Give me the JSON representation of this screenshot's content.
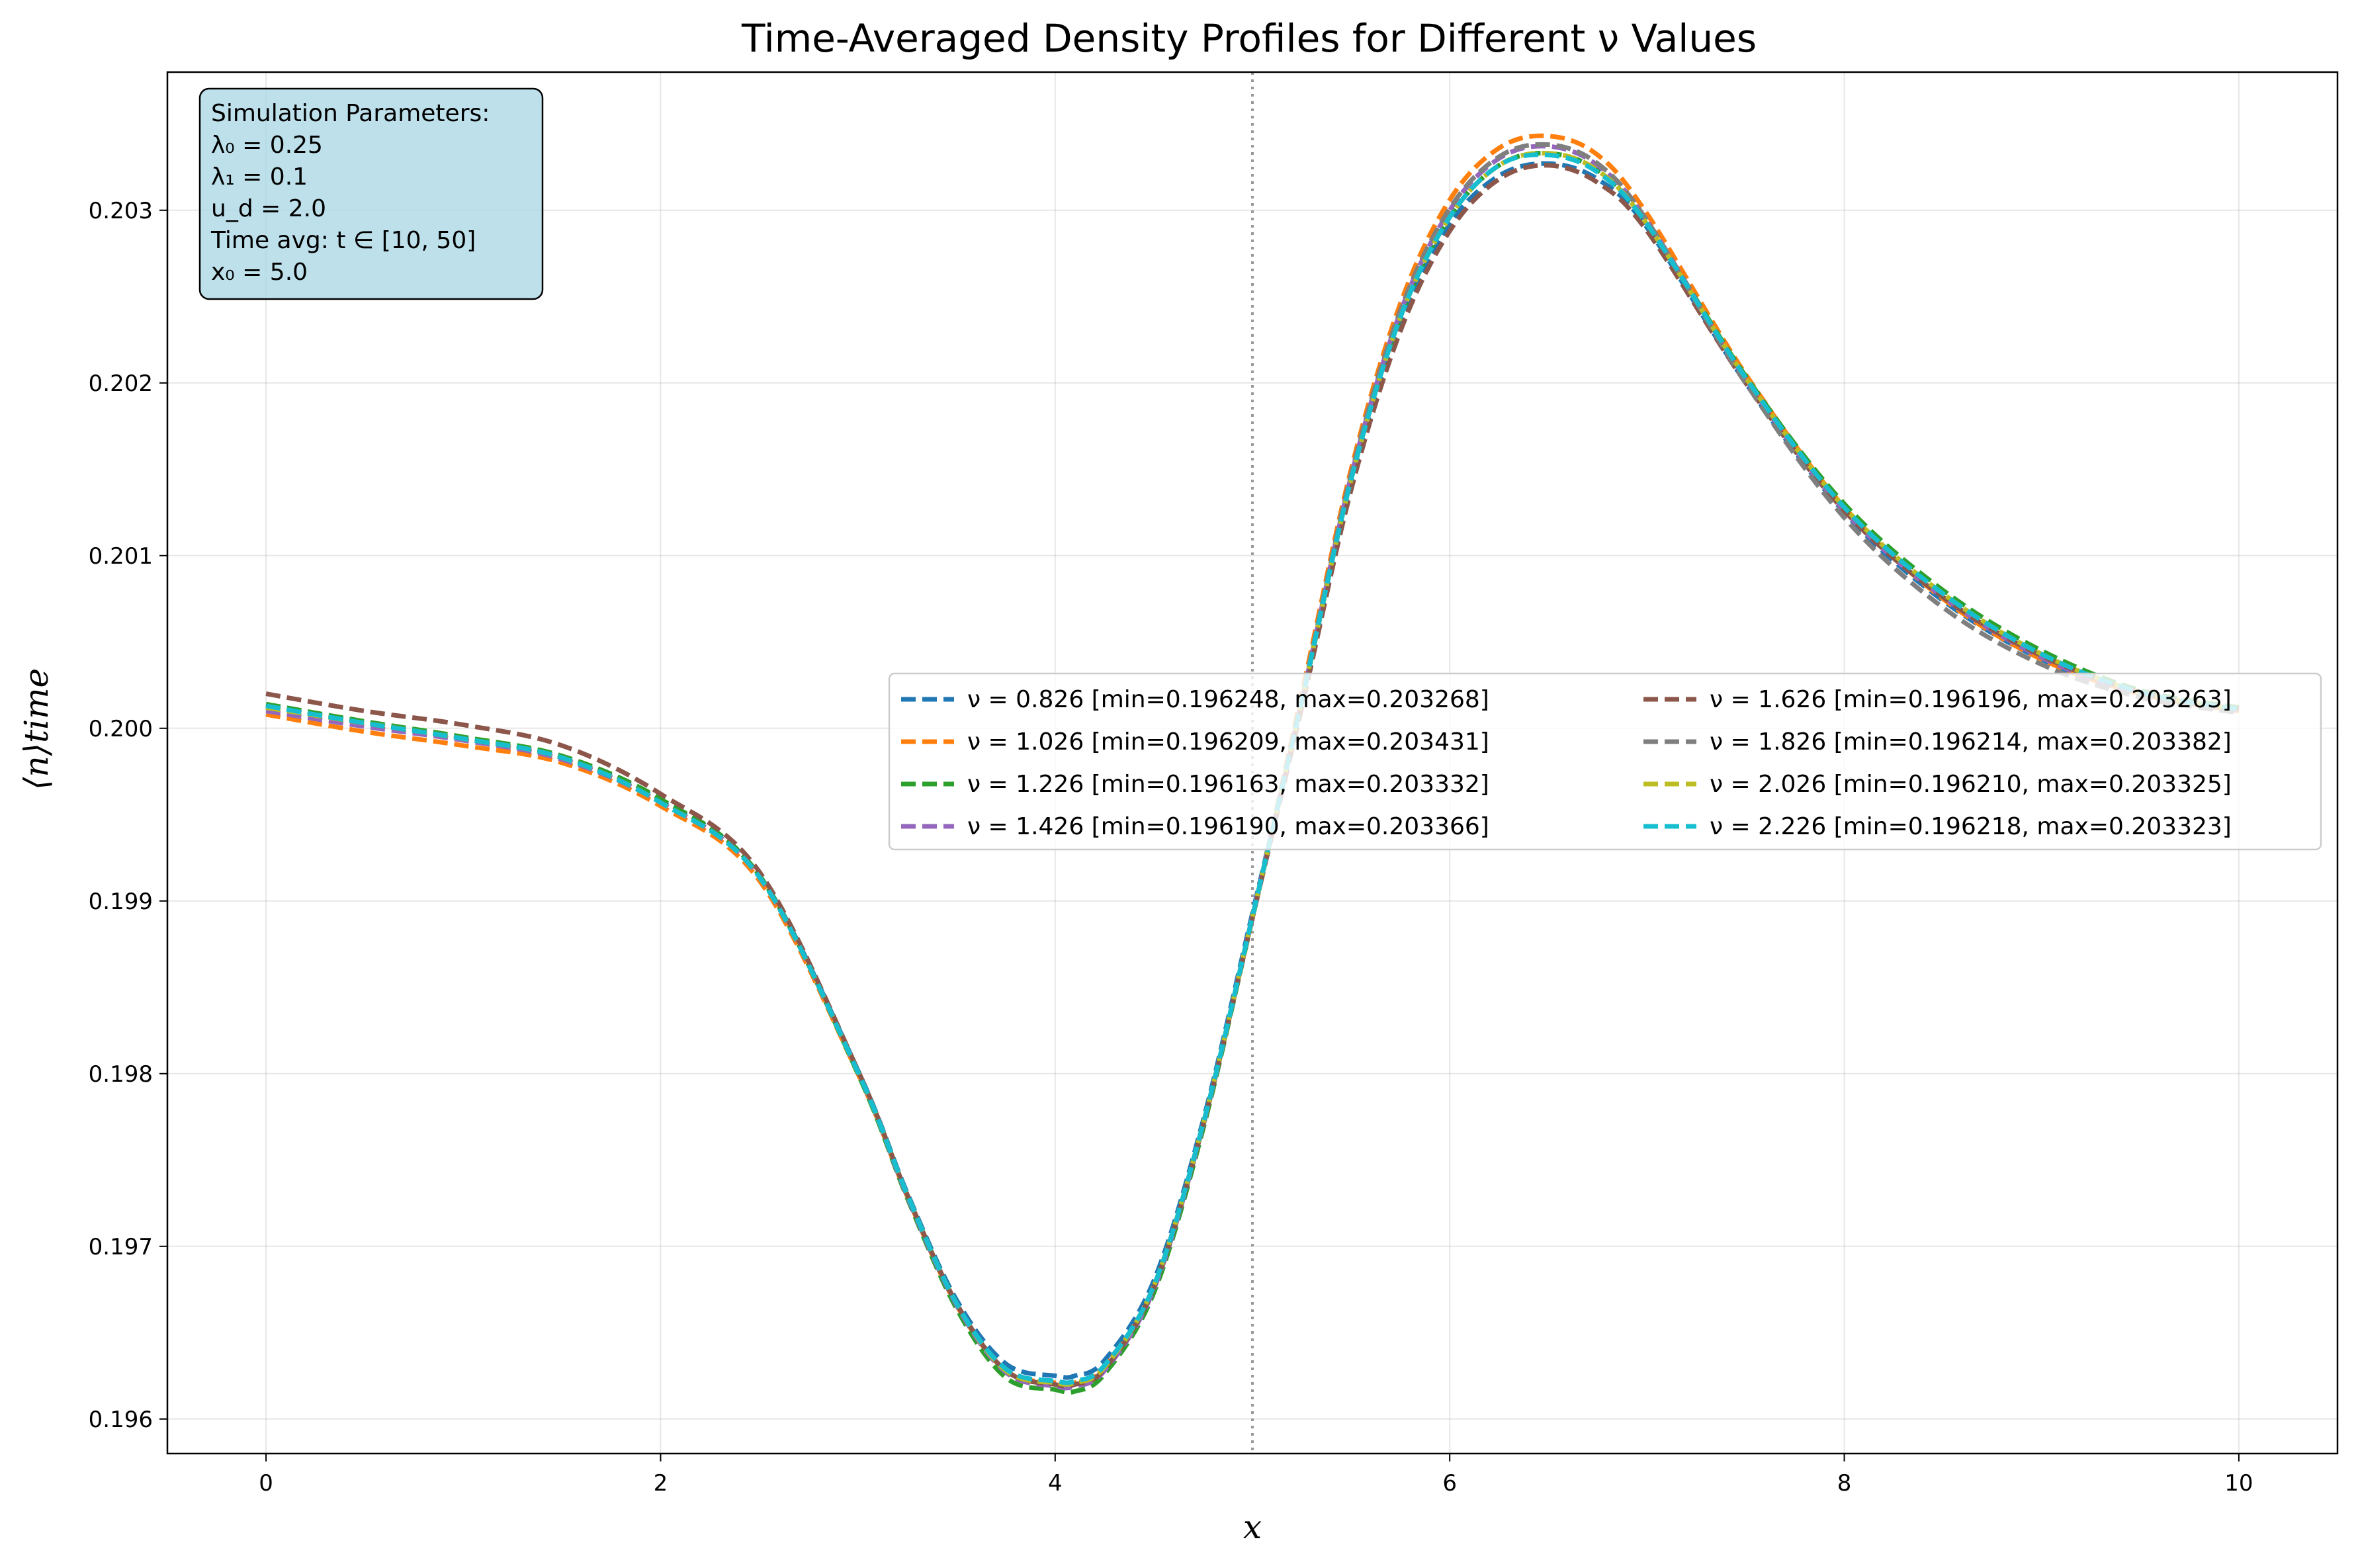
{
  "chart_data": {
    "type": "line",
    "title": "Time-Averaged Density Profiles for Different ν Values",
    "xlabel": "x",
    "ylabel": "⟨n⟩time",
    "xlim": [
      -0.5,
      10.5
    ],
    "ylim": [
      0.1958,
      0.2038
    ],
    "xticks": [
      0,
      2,
      4,
      6,
      8,
      10
    ],
    "xtick_labels": [
      "0",
      "2",
      "4",
      "6",
      "8",
      "10"
    ],
    "yticks": [
      0.196,
      0.197,
      0.198,
      0.199,
      0.2,
      0.201,
      0.202,
      0.203
    ],
    "ytick_labels": [
      "0.196",
      "0.197",
      "0.198",
      "0.199",
      "0.200",
      "0.201",
      "0.202",
      "0.203"
    ],
    "grid": true,
    "legend_position": "center-right",
    "vline": {
      "x": 5.0,
      "style": "dotted",
      "color": "#999999"
    },
    "x": [
      0,
      0.5,
      1,
      1.5,
      2,
      2.5,
      3,
      3.25,
      3.5,
      3.75,
      4,
      4.1,
      4.25,
      4.5,
      4.75,
      5,
      5.25,
      5.5,
      5.75,
      6,
      6.25,
      6.5,
      6.75,
      7,
      7.5,
      8,
      8.5,
      9,
      9.5,
      10
    ],
    "series": [
      {
        "name": "ν = 0.826 [min=0.196248, max=0.203268]",
        "color": "#1f77b4",
        "values": [
          0.20013,
          0.20003,
          0.19994,
          0.19983,
          0.19958,
          0.19915,
          0.19802,
          0.19731,
          0.19669,
          0.19632,
          0.19625,
          0.19625,
          0.19634,
          0.1968,
          0.19773,
          0.19893,
          0.20014,
          0.20142,
          0.20235,
          0.20292,
          0.2032,
          0.20327,
          0.20318,
          0.2029,
          0.202,
          0.20125,
          0.20074,
          0.2004,
          0.2002,
          0.2001
        ]
      },
      {
        "name": "ν = 1.026 [min=0.196209, max=0.203431]",
        "color": "#ff7f0e",
        "values": [
          0.20008,
          0.19998,
          0.1999,
          0.1998,
          0.19955,
          0.19912,
          0.198,
          0.19729,
          0.19666,
          0.19628,
          0.19621,
          0.19621,
          0.1963,
          0.19677,
          0.1977,
          0.1989,
          0.2002,
          0.2015,
          0.20246,
          0.20306,
          0.20336,
          0.20343,
          0.20332,
          0.20298,
          0.20205,
          0.20128,
          0.20075,
          0.2004,
          0.2002,
          0.2001
        ]
      },
      {
        "name": "ν = 1.226 [min=0.196163, max=0.203332]",
        "color": "#2ca02c",
        "values": [
          0.20014,
          0.20004,
          0.19995,
          0.19984,
          0.19959,
          0.19915,
          0.198,
          0.19728,
          0.19664,
          0.19624,
          0.19617,
          0.19616,
          0.19626,
          0.19673,
          0.19768,
          0.1989,
          0.20015,
          0.20144,
          0.20238,
          0.20296,
          0.20326,
          0.20333,
          0.20323,
          0.20293,
          0.20204,
          0.2013,
          0.2008,
          0.20045,
          0.20022,
          0.20012
        ]
      },
      {
        "name": "ν = 1.426 [min=0.196190, max=0.203366]",
        "color": "#9467bd",
        "values": [
          0.2001,
          0.20001,
          0.19993,
          0.19982,
          0.19957,
          0.19914,
          0.19801,
          0.19729,
          0.19666,
          0.19627,
          0.19619,
          0.19619,
          0.19628,
          0.19675,
          0.1977,
          0.19891,
          0.20016,
          0.20146,
          0.20241,
          0.203,
          0.2033,
          0.20337,
          0.20326,
          0.20294,
          0.20202,
          0.20126,
          0.20076,
          0.20041,
          0.2002,
          0.2001
        ]
      },
      {
        "name": "ν = 1.626 [min=0.196196, max=0.203263]",
        "color": "#8c564b",
        "values": [
          0.2002,
          0.2001,
          0.20002,
          0.1999,
          0.19962,
          0.19917,
          0.19802,
          0.1973,
          0.19667,
          0.19628,
          0.1962,
          0.1962,
          0.19629,
          0.19676,
          0.1977,
          0.1989,
          0.20012,
          0.20138,
          0.2023,
          0.20288,
          0.20318,
          0.20326,
          0.20316,
          0.20288,
          0.202,
          0.20126,
          0.20076,
          0.20042,
          0.20021,
          0.20011
        ]
      },
      {
        "name": "ν = 1.826 [min=0.196214, max=0.203382]",
        "color": "#7f7f7f",
        "values": [
          0.20012,
          0.20003,
          0.19994,
          0.19983,
          0.19957,
          0.19914,
          0.19801,
          0.1973,
          0.19667,
          0.19629,
          0.19621,
          0.19621,
          0.19631,
          0.19677,
          0.19771,
          0.19891,
          0.20017,
          0.20147,
          0.20242,
          0.20301,
          0.20331,
          0.20338,
          0.20327,
          0.20294,
          0.202,
          0.20122,
          0.2007,
          0.20037,
          0.20018,
          0.20009
        ]
      },
      {
        "name": "ν = 2.026 [min=0.196210, max=0.203325]",
        "color": "#bcbd22",
        "values": [
          0.20012,
          0.20003,
          0.19994,
          0.19983,
          0.19957,
          0.19914,
          0.19801,
          0.1973,
          0.19667,
          0.19628,
          0.19621,
          0.19621,
          0.1963,
          0.19677,
          0.19771,
          0.19891,
          0.20016,
          0.20144,
          0.20238,
          0.20296,
          0.20326,
          0.20333,
          0.20323,
          0.20292,
          0.20203,
          0.20128,
          0.20078,
          0.20043,
          0.20021,
          0.20011
        ]
      },
      {
        "name": "ν = 2.226 [min=0.196218, max=0.203323]",
        "color": "#17becf",
        "values": [
          0.20013,
          0.20003,
          0.19994,
          0.19983,
          0.19957,
          0.19914,
          0.19801,
          0.1973,
          0.19667,
          0.19629,
          0.19622,
          0.19622,
          0.19631,
          0.19677,
          0.19771,
          0.19891,
          0.20016,
          0.20144,
          0.20238,
          0.20296,
          0.20326,
          0.20332,
          0.20322,
          0.20292,
          0.20203,
          0.20128,
          0.20078,
          0.20043,
          0.20021,
          0.20011
        ]
      }
    ],
    "annotation": {
      "lines": [
        "Simulation Parameters:",
        "λ₀ = 0.25",
        "λ₁ = 0.1",
        "u_d = 2.0",
        "Time avg: t ∈ [10, 50]",
        "x₀ = 5.0"
      ],
      "background": "#add8e6"
    }
  }
}
